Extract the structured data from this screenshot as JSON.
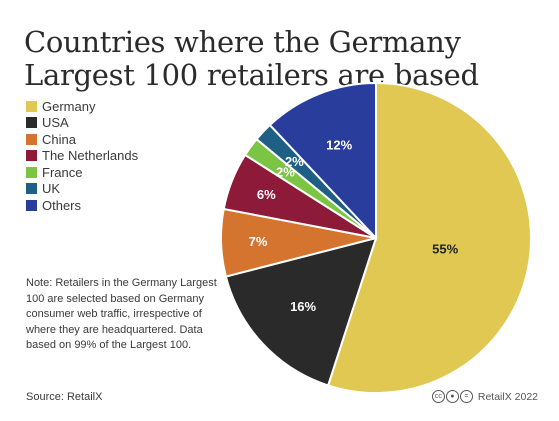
{
  "title": "Countries where the Germany Largest 100 retailers are based",
  "note": "Note: Retailers in the Germany Largest 100 are selected based on Germany consumer web traffic, irrespective of where they are headquartered. Data based on 99% of the Largest 100.",
  "source": "Source: RetailX",
  "credit": "RetailX 2022",
  "credit_icons": [
    "cc-icon",
    "by-icon",
    "nd-icon"
  ],
  "chart_data": {
    "type": "pie",
    "title": "Countries where the Germany Largest 100 retailers are based",
    "legend_position": "top-left",
    "slices": [
      {
        "label": "Germany",
        "value": 55,
        "display": "55%",
        "color": "#e0c852",
        "text_color": "#222222"
      },
      {
        "label": "USA",
        "value": 16,
        "display": "16%",
        "color": "#2a2a2a",
        "text_color": "#ffffff"
      },
      {
        "label": "China",
        "value": 7,
        "display": "7%",
        "color": "#d4742e",
        "text_color": "#ffffff"
      },
      {
        "label": "The Netherlands",
        "value": 6,
        "display": "6%",
        "color": "#8e1a3a",
        "text_color": "#ffffff"
      },
      {
        "label": "France",
        "value": 2,
        "display": "2%",
        "color": "#7cc444",
        "text_color": "#ffffff"
      },
      {
        "label": "UK",
        "value": 2,
        "display": "2%",
        "color": "#1f5f86",
        "text_color": "#ffffff"
      },
      {
        "label": "Others",
        "value": 12,
        "display": "12%",
        "color": "#283d9c",
        "text_color": "#ffffff"
      }
    ]
  }
}
